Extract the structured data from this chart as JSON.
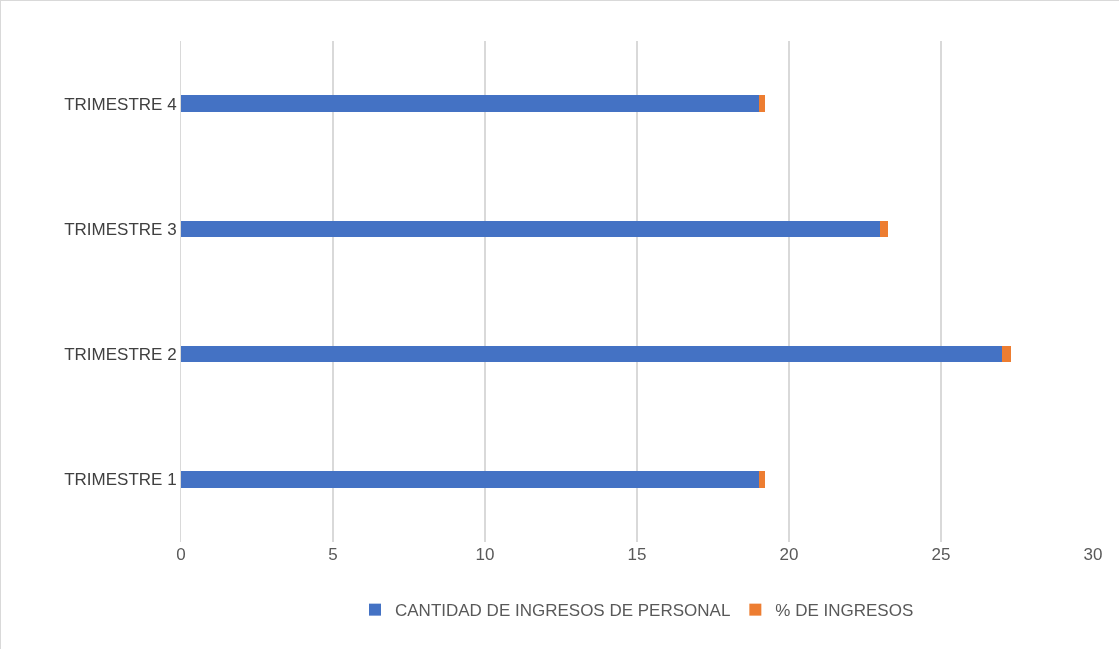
{
  "chart_data": {
    "type": "bar",
    "orientation": "horizontal",
    "stacked": true,
    "categories": [
      "TRIMESTRE 4",
      "TRIMESTRE 3",
      "TRIMESTRE 2",
      "TRIMESTRE 1"
    ],
    "series": [
      {
        "name": "CANTIDAD DE INGRESOS DE PERSONAL",
        "color": "#4472c4",
        "values": [
          19,
          23,
          27,
          19
        ]
      },
      {
        "name": "% DE INGRESOS",
        "color": "#ed7d31",
        "values": [
          0.2,
          0.25,
          0.3,
          0.2
        ]
      }
    ],
    "xlim": [
      0,
      30
    ],
    "xticks": [
      0,
      5,
      10,
      15,
      20,
      25,
      30
    ],
    "grid": "x",
    "legend": "bottom"
  }
}
